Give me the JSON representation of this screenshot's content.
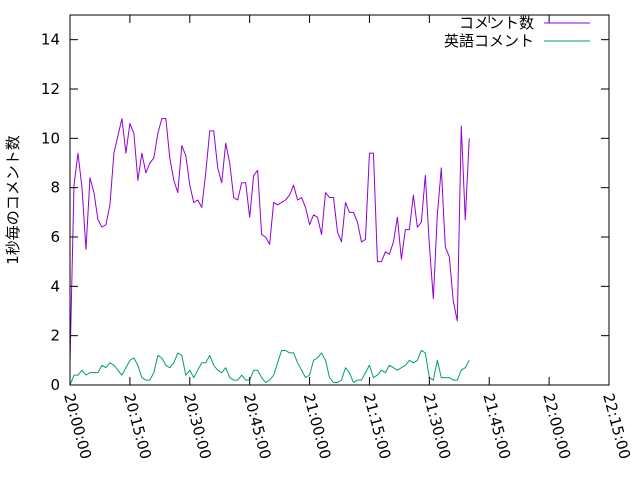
{
  "chart_data": {
    "type": "line",
    "title": "",
    "xlabel": "",
    "ylabel": "1秒毎のコメント数",
    "x_start": "20:00:00",
    "x_interval_minutes": 1,
    "xlim": [
      "20:00:00",
      "22:15:00"
    ],
    "x_ticks": [
      "20:00:00",
      "20:15:00",
      "20:30:00",
      "20:45:00",
      "21:00:00",
      "21:15:00",
      "21:30:00",
      "21:45:00",
      "22:00:00",
      "22:15:00"
    ],
    "ylim": [
      0,
      15
    ],
    "y_ticks": [
      "0",
      "2",
      "4",
      "6",
      "8",
      "10",
      "12",
      "14"
    ],
    "grid": false,
    "legend_position": "top-right",
    "series": [
      {
        "name": "コメント数",
        "color": "#9400d3",
        "values": [
          0.9,
          8.1,
          9.4,
          8.0,
          5.5,
          8.4,
          7.8,
          6.7,
          6.4,
          6.5,
          7.3,
          9.4,
          10.1,
          10.8,
          9.4,
          10.6,
          10.2,
          8.3,
          9.4,
          8.6,
          9.0,
          9.2,
          10.2,
          10.8,
          10.8,
          9.2,
          8.3,
          7.8,
          9.7,
          9.3,
          8.1,
          7.4,
          7.5,
          7.2,
          8.6,
          10.3,
          10.3,
          8.8,
          8.2,
          9.8,
          9.0,
          7.6,
          7.5,
          8.2,
          8.2,
          6.8,
          8.5,
          8.7,
          6.1,
          6.0,
          5.7,
          7.4,
          7.3,
          7.4,
          7.5,
          7.7,
          8.1,
          7.5,
          7.6,
          7.2,
          6.5,
          6.9,
          6.8,
          6.1,
          7.8,
          7.6,
          7.6,
          6.2,
          5.8,
          7.4,
          7.0,
          7.0,
          6.6,
          5.8,
          5.9,
          9.4,
          9.4,
          5.0,
          5.0,
          5.4,
          5.3,
          5.8,
          6.8,
          5.1,
          6.3,
          6.3,
          7.7,
          6.4,
          6.6,
          8.5,
          5.7,
          3.5,
          6.9,
          8.8,
          5.6,
          5.2,
          3.4,
          2.6,
          10.5,
          6.7,
          10.0
        ]
      },
      {
        "name": "英語コメント",
        "color": "#009e73",
        "values": [
          0.0,
          0.4,
          0.4,
          0.6,
          0.4,
          0.5,
          0.5,
          0.5,
          0.8,
          0.7,
          0.9,
          0.8,
          0.6,
          0.4,
          0.7,
          1.0,
          1.1,
          0.8,
          0.3,
          0.2,
          0.2,
          0.5,
          1.2,
          1.1,
          0.8,
          0.7,
          0.9,
          1.3,
          1.2,
          0.4,
          0.6,
          0.3,
          0.6,
          0.9,
          0.9,
          1.2,
          0.8,
          0.6,
          0.5,
          0.7,
          0.3,
          0.2,
          0.2,
          0.4,
          0.2,
          0.2,
          0.6,
          0.6,
          0.3,
          0.1,
          0.2,
          0.4,
          0.9,
          1.4,
          1.4,
          1.3,
          1.3,
          0.9,
          0.6,
          0.3,
          0.4,
          1.0,
          1.1,
          1.3,
          1.0,
          0.3,
          0.1,
          0.1,
          0.2,
          0.7,
          0.5,
          0.1,
          0.2,
          0.2,
          0.5,
          0.8,
          0.3,
          0.4,
          0.6,
          0.5,
          0.8,
          0.7,
          0.6,
          0.7,
          0.8,
          1.0,
          0.9,
          1.0,
          1.4,
          1.3,
          0.3,
          0.2,
          1.0,
          0.3,
          0.3,
          0.3,
          0.2,
          0.2,
          0.6,
          0.7,
          1.0
        ]
      }
    ]
  }
}
